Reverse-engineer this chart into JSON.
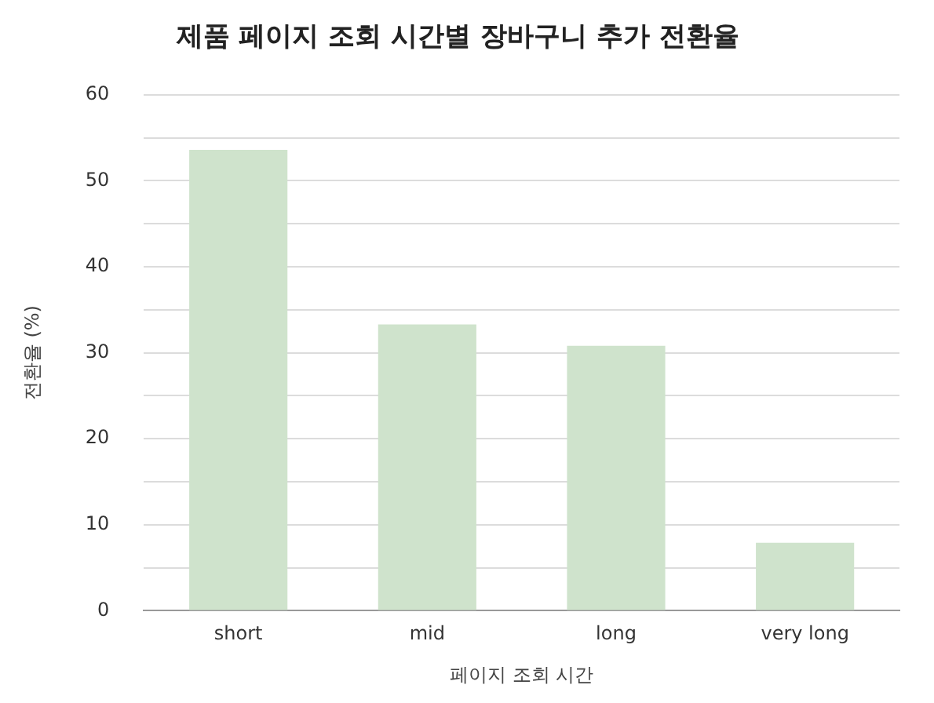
{
  "chart_data": {
    "type": "bar",
    "title": "제품 페이지 조회 시간별 장바구니 추가 전환율",
    "xlabel": "페이지 조회 시간",
    "ylabel": "전환율 (%)",
    "categories": [
      "short",
      "mid",
      "long",
      "very long"
    ],
    "values": [
      53.6,
      33.3,
      30.8,
      7.9
    ],
    "color": "#cfe3cc",
    "ylim": [
      0,
      60
    ],
    "yticks": [
      0,
      {
        "value": 5,
        "label": null
      },
      10,
      {
        "value": 15,
        "label": null
      },
      20,
      {
        "value": 25,
        "label": null
      },
      30,
      {
        "value": 35,
        "label": null
      },
      40,
      {
        "value": 45,
        "label": null
      },
      50,
      {
        "value": 55,
        "label": null
      },
      60
    ],
    "grid": "y"
  }
}
